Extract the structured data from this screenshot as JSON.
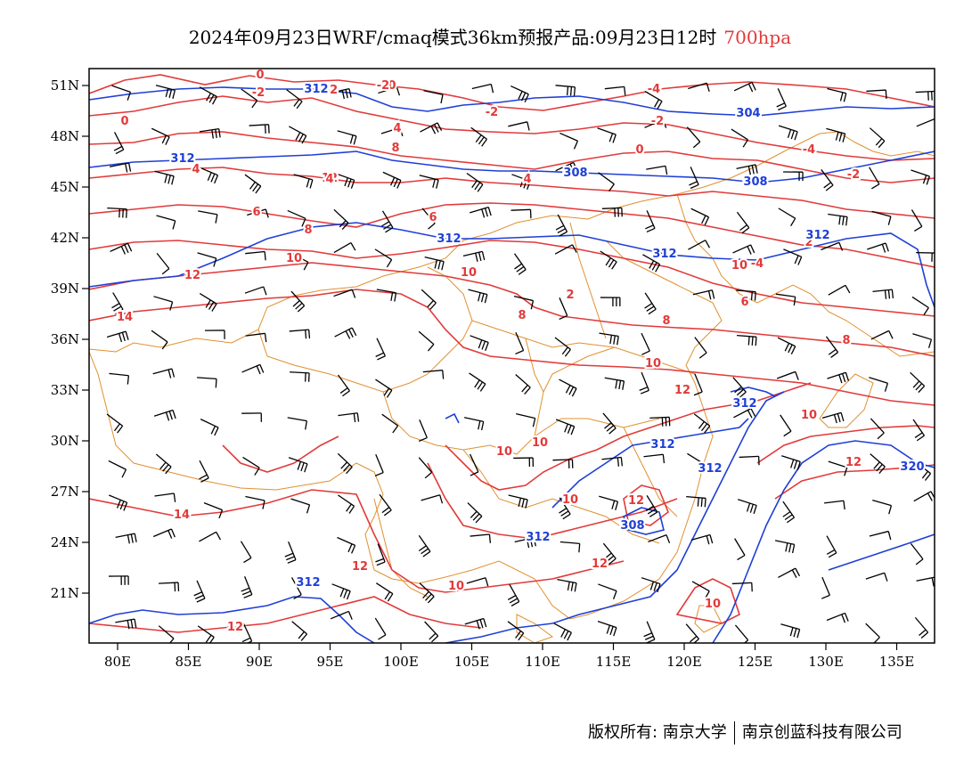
{
  "title": {
    "main": "2024年09月23日WRF/cmaq模式36km预报产品:09月23日12时",
    "level": "700hpa"
  },
  "colors": {
    "temperature": "#e23a3a",
    "geopotential": "#1f3fd6",
    "border": "#e0902f",
    "wind": "#000000"
  },
  "axes": {
    "lon_labels": [
      "80E",
      "85E",
      "90E",
      "95E",
      "100E",
      "105E",
      "110E",
      "115E",
      "120E",
      "125E",
      "130E",
      "135E"
    ],
    "lat_labels": [
      "51N",
      "48N",
      "45N",
      "42N",
      "39N",
      "36N",
      "33N",
      "30N",
      "27N",
      "24N",
      "21N"
    ]
  },
  "contour_labels": {
    "temperature": [
      "0",
      "-2",
      "0",
      "-2",
      "-2",
      "-4",
      "-2",
      "0",
      "-4",
      "4",
      "-2",
      "2",
      "4",
      "4",
      "6",
      "8",
      "6",
      "8",
      "10",
      "12",
      "10",
      "12",
      "14",
      "10",
      "8",
      "8",
      "6",
      "8",
      "10",
      "12",
      "10",
      "10",
      "10",
      "12",
      "12",
      "10",
      "12",
      "14",
      "12",
      "10",
      "12",
      "10",
      "0",
      "-2",
      "-4",
      "2",
      "4"
    ],
    "geopotential": [
      "312",
      "304",
      "308",
      "308",
      "312",
      "312",
      "312",
      "312",
      "312",
      "320",
      "312",
      "308",
      "312",
      "312",
      "312"
    ]
  },
  "footer": {
    "copyright": "版权所有: 南京大学",
    "company": "南京创蓝科技有限公司"
  }
}
